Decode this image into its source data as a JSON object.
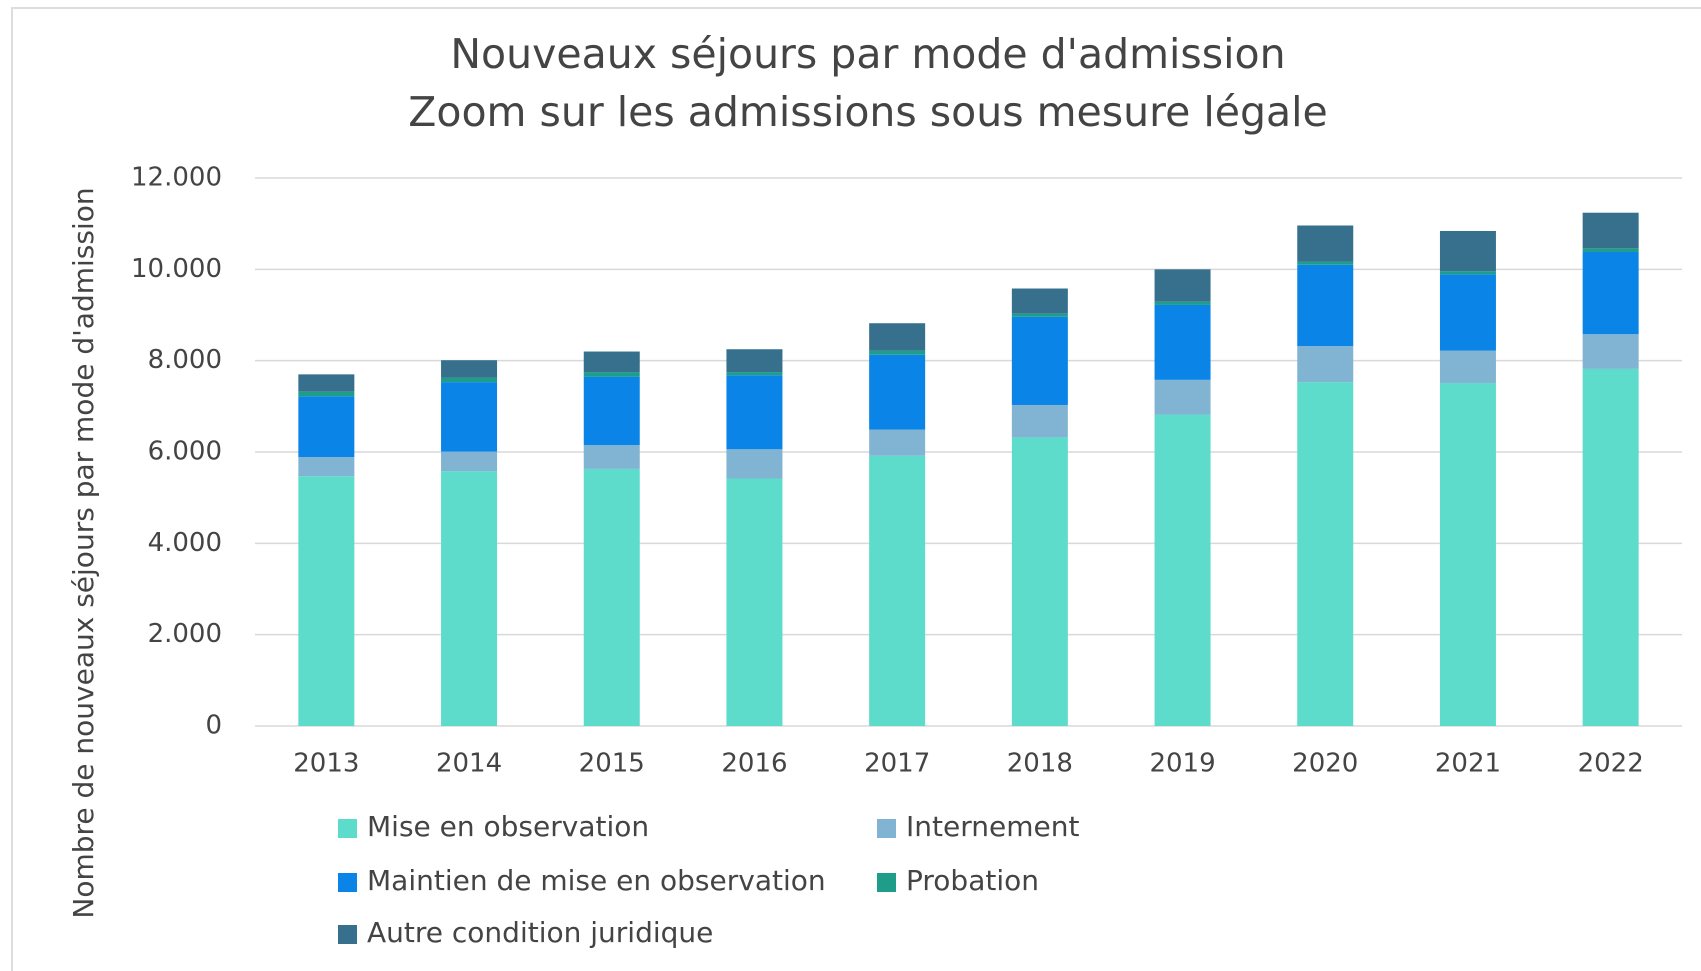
{
  "chart_data": {
    "type": "stacked_bar",
    "title": [
      "Nouveaux séjours par mode d'admission",
      "Zoom sur les admissions sous mesure légale"
    ],
    "y_label": "Nombre de nouveaux séjours par mode d'admission",
    "categories": [
      "2013",
      "2014",
      "2015",
      "2016",
      "2017",
      "2018",
      "2019",
      "2020",
      "2021",
      "2022"
    ],
    "series": [
      {
        "name": "Mise en observation",
        "color": "#5ddccb",
        "values": [
          5470,
          5580,
          5630,
          5420,
          5920,
          6320,
          6820,
          7530,
          7510,
          7820
        ]
      },
      {
        "name": "Internement",
        "color": "#80b4d2",
        "values": [
          420,
          430,
          520,
          640,
          570,
          710,
          760,
          790,
          710,
          760
        ]
      },
      {
        "name": "Maintien de mise en observation",
        "color": "#0a84e6",
        "values": [
          1330,
          1520,
          1500,
          1620,
          1640,
          1930,
          1640,
          1780,
          1670,
          1800
        ]
      },
      {
        "name": "Probation",
        "color": "#1e9e8a",
        "values": [
          100,
          100,
          100,
          70,
          90,
          70,
          70,
          70,
          70,
          80
        ]
      },
      {
        "name": "Autre condition juridique",
        "color": "#36708d",
        "values": [
          380,
          380,
          450,
          500,
          600,
          550,
          710,
          790,
          880,
          780
        ]
      }
    ],
    "ylim": [
      0,
      12000
    ],
    "yticks": [
      0,
      {
        "value": 2000,
        "label": "2.000"
      },
      {
        "value": 4000,
        "label": "4.000"
      },
      {
        "value": 6000,
        "label": "6.000"
      },
      {
        "value": 8000,
        "label": "8.000"
      },
      {
        "value": 10000,
        "label": "10.000"
      },
      {
        "value": 12000,
        "label": "12.000"
      }
    ],
    "grid": true
  }
}
